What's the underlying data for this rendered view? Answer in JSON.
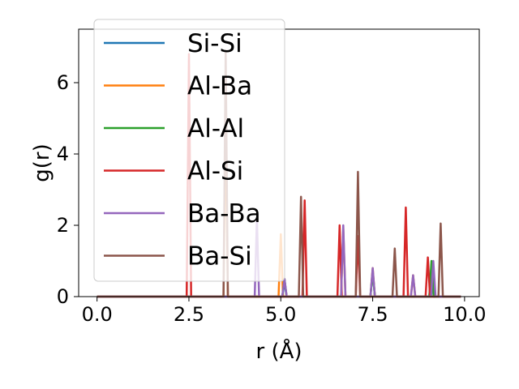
{
  "chart_data": {
    "type": "line",
    "title": "",
    "xlabel": "r (Å)",
    "ylabel": "g(r)",
    "xlim": [
      -0.5,
      10.4
    ],
    "ylim": [
      0,
      7.5
    ],
    "xticks": [
      0.0,
      2.5,
      5.0,
      7.5,
      10.0
    ],
    "xtick_labels": [
      "0.0",
      "2.5",
      "5.0",
      "7.5",
      "10.0"
    ],
    "yticks": [
      0,
      2,
      4,
      6
    ],
    "ytick_labels": [
      "0",
      "2",
      "4",
      "6"
    ],
    "grid": false,
    "legend_position": "top-left",
    "r_range": [
      0.0,
      9.9
    ],
    "series": [
      {
        "name": "Si-Si",
        "color": "#1f77b4",
        "peaks": [
          [
            5.1,
            0.4
          ],
          [
            7.5,
            0.7
          ],
          [
            9.1,
            0.9
          ]
        ]
      },
      {
        "name": "Al-Ba",
        "color": "#ff7f0e",
        "peaks": [
          [
            3.5,
            5.0
          ],
          [
            5.0,
            1.75
          ],
          [
            6.7,
            1.9
          ],
          [
            7.5,
            0.8
          ],
          [
            8.6,
            0.6
          ]
        ]
      },
      {
        "name": "Al-Al",
        "color": "#2ca02c",
        "peaks": [
          [
            5.1,
            0.5
          ],
          [
            7.5,
            0.7
          ],
          [
            9.1,
            1.0
          ]
        ]
      },
      {
        "name": "Al-Si",
        "color": "#d62728",
        "peaks": [
          [
            2.5,
            6.8
          ],
          [
            5.65,
            2.7
          ],
          [
            6.6,
            2.0
          ],
          [
            7.1,
            1.7
          ],
          [
            8.4,
            2.5
          ],
          [
            9.0,
            1.1
          ]
        ]
      },
      {
        "name": "Ba-Ba",
        "color": "#9467bd",
        "peaks": [
          [
            4.35,
            2.2
          ],
          [
            5.1,
            0.5
          ],
          [
            6.7,
            2.0
          ],
          [
            7.5,
            0.8
          ],
          [
            8.6,
            0.6
          ],
          [
            9.15,
            1.0
          ]
        ]
      },
      {
        "name": "Ba-Si",
        "color": "#8c564b",
        "peaks": [
          [
            3.5,
            6.9
          ],
          [
            5.55,
            2.8
          ],
          [
            7.1,
            3.5
          ],
          [
            8.1,
            1.35
          ],
          [
            9.35,
            2.05
          ]
        ]
      }
    ]
  }
}
